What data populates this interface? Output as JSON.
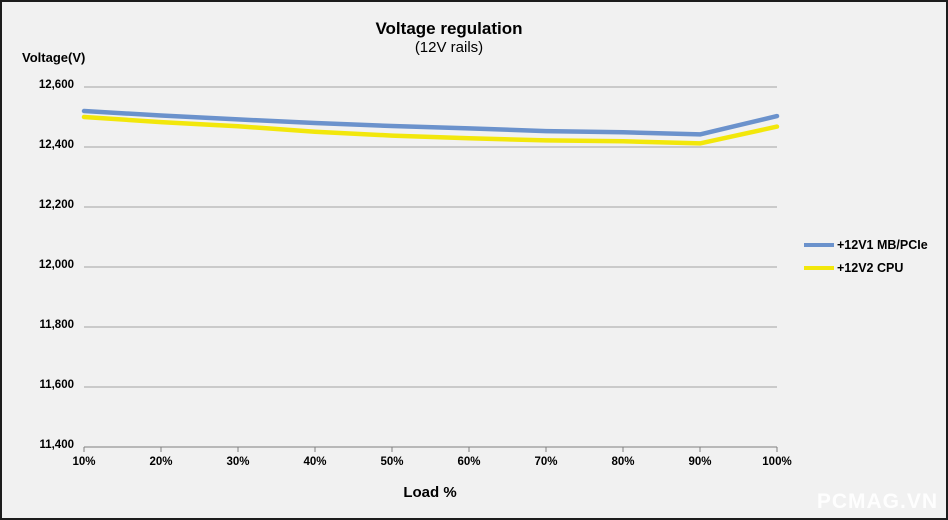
{
  "title": "Voltage regulation",
  "subtitle": "(12V rails)",
  "watermark": "PCMAG.VN",
  "colors": {
    "background": "#f1f1f1",
    "border": "#1c1c1c",
    "gridline": "#a3a3a3",
    "axis_line": "#7f7f7f",
    "series_blue": "#6b92cc",
    "series_yellow": "#f2e70b",
    "watermark_text": "#fcfcfc"
  },
  "chart_data": {
    "type": "line",
    "title": "Voltage regulation",
    "subtitle": "(12V rails)",
    "xlabel": "Load %",
    "ylabel": "Voltage(V)",
    "categories": [
      "10%",
      "20%",
      "30%",
      "40%",
      "50%",
      "60%",
      "70%",
      "80%",
      "90%",
      "100%"
    ],
    "series": [
      {
        "name": "+12V1 MB/PCIe",
        "color": "#6b92cc",
        "values": [
          12520,
          12505,
          12492,
          12480,
          12470,
          12462,
          12453,
          12449,
          12442,
          12503
        ]
      },
      {
        "name": "+12V2 CPU",
        "color": "#f2e70b",
        "values": [
          12500,
          12483,
          12469,
          12451,
          12438,
          12429,
          12422,
          12419,
          12412,
          12468
        ]
      }
    ],
    "ylim": [
      11400,
      12600
    ],
    "y_tick_step": 200,
    "y_tick_labels": [
      "11,400",
      "11,600",
      "11,800",
      "12,000",
      "12,200",
      "12,400",
      "12,600"
    ],
    "grid": true,
    "legend_position": "right",
    "units_note": "axis shows volts with thousands-style formatting (12,600 = 12.6 V)"
  }
}
